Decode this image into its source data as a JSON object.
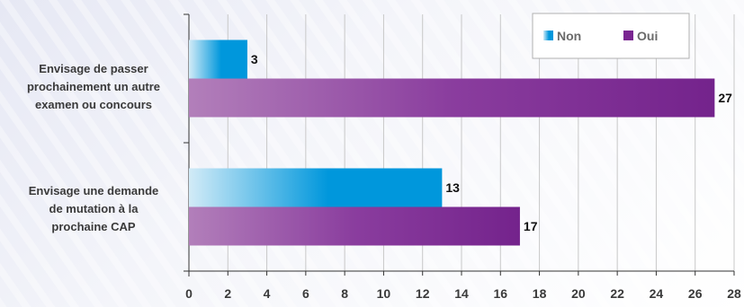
{
  "chart_data": {
    "type": "bar",
    "orientation": "horizontal",
    "categories": [
      [
        "Envisage de passer",
        "prochainement un autre",
        "examen ou concours"
      ],
      [
        "Envisage une demande",
        "de mutation à la",
        "prochaine CAP"
      ]
    ],
    "series": [
      {
        "name": "Non",
        "values": [
          3,
          13
        ]
      },
      {
        "name": "Oui",
        "values": [
          27,
          17
        ]
      }
    ],
    "xlim": [
      0,
      28
    ],
    "xticks": [
      "0",
      "2",
      "4",
      "6",
      "8",
      "10",
      "12",
      "14",
      "16",
      "18",
      "20",
      "22",
      "24",
      "26",
      "28"
    ],
    "grid": true,
    "legend_position": "top-right",
    "colors": {
      "Non": "#0097dc",
      "Non_light": "#d2ebf7",
      "Oui": "#7a2591",
      "Oui_light": "#b27fba"
    }
  }
}
